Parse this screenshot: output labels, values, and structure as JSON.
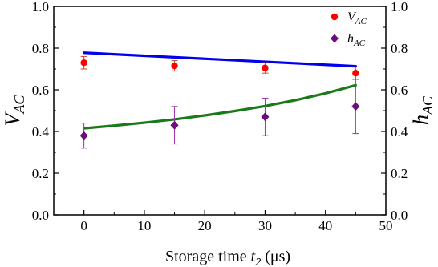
{
  "chart_data": {
    "type": "scatter",
    "xlabel": {
      "text": "Storage time ",
      "var": "t",
      "sub": "2",
      "unit": " (μs)"
    },
    "ylabel_left": {
      "var": "V",
      "sub": "AC"
    },
    "ylabel_right": {
      "var": "h",
      "sub": "AC"
    },
    "xlim": [
      -5,
      50
    ],
    "ylim": [
      0.0,
      1.0
    ],
    "x_ticks": [
      0,
      10,
      20,
      30,
      40,
      50
    ],
    "y_ticks": [
      0.0,
      0.2,
      0.4,
      0.6,
      0.8,
      1.0
    ],
    "x_tick_labels": [
      "0",
      "10",
      "20",
      "30",
      "40",
      "50"
    ],
    "y_tick_labels": [
      "0.0",
      "0.2",
      "0.4",
      "0.6",
      "0.8",
      "1.0"
    ],
    "legend_position": "top-right",
    "grid": false,
    "series": [
      {
        "name": {
          "var": "V",
          "sub": "AC"
        },
        "marker": "circle",
        "color": "#ff0000",
        "errcolor": "#c84b1e",
        "x": [
          0,
          15,
          30,
          45
        ],
        "y": [
          0.73,
          0.715,
          0.705,
          0.68
        ],
        "err": [
          0.03,
          0.025,
          0.025,
          0.03
        ]
      },
      {
        "name": {
          "var": "h",
          "sub": "AC"
        },
        "marker": "diamond",
        "color": "#6a0f7a",
        "errcolor": "#a030a8",
        "x": [
          0,
          15,
          30,
          45
        ],
        "y": [
          0.38,
          0.43,
          0.47,
          0.52
        ],
        "err": [
          0.06,
          0.09,
          0.09,
          0.13
        ]
      }
    ],
    "fit_lines": [
      {
        "color": "#0000ee",
        "x": [
          0,
          45
        ],
        "y": [
          0.778,
          0.713
        ]
      },
      {
        "color": "#1a7a1a",
        "x": [
          0,
          5,
          10,
          15,
          20,
          25,
          30,
          35,
          40,
          45
        ],
        "y": [
          0.415,
          0.428,
          0.442,
          0.458,
          0.477,
          0.498,
          0.522,
          0.55,
          0.583,
          0.622
        ]
      }
    ]
  }
}
